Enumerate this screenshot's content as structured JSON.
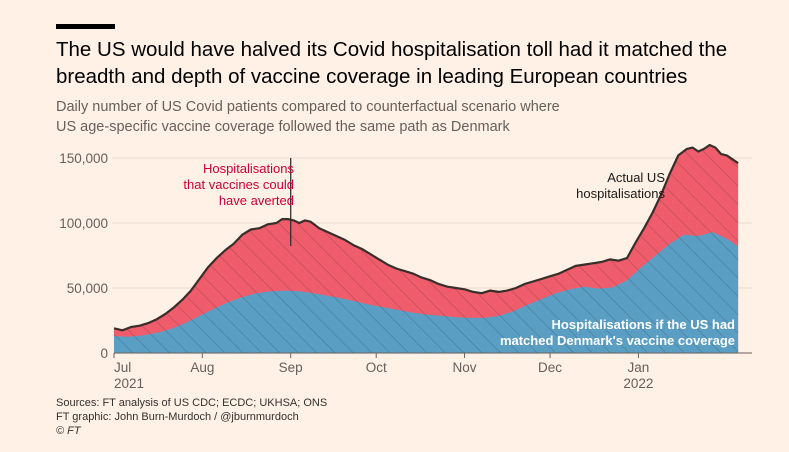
{
  "header": {
    "title": "The US would have halved its Covid hospitalisation toll had it matched the breadth and depth of vaccine coverage in leading European countries",
    "subtitle_line1": "Daily number of US Covid patients compared to counterfactual scenario where",
    "subtitle_line2": "US age-specific vaccine coverage followed the same path as Denmark"
  },
  "footer": {
    "sources": "Sources: FT analysis of US CDC; ECDC; UKHSA; ONS",
    "graphic": "FT graphic: John Burn-Murdoch / @jburnmurdoch",
    "copyright": "© FT"
  },
  "colors": {
    "background": "#fff1e5",
    "actual_area": "#ef5d6c",
    "counterfactual_area": "#5a9ec4",
    "actual_line": "#3a2e2a",
    "annotation_red": "#cc0033",
    "axis_text": "#66605c"
  },
  "chart_data": {
    "type": "area",
    "x_axis_ticks": [
      {
        "label": "Jul",
        "sublabel": "2021",
        "day": 0
      },
      {
        "label": "Aug",
        "sublabel": "",
        "day": 31
      },
      {
        "label": "Sep",
        "sublabel": "",
        "day": 62
      },
      {
        "label": "Oct",
        "sublabel": "",
        "day": 92
      },
      {
        "label": "Nov",
        "sublabel": "",
        "day": 123
      },
      {
        "label": "Dec",
        "sublabel": "",
        "day": 153
      },
      {
        "label": "Jan",
        "sublabel": "2022",
        "day": 184
      }
    ],
    "y_axis_ticks": [
      {
        "label": "0",
        "value": 0
      },
      {
        "label": "50,000",
        "value": 50000
      },
      {
        "label": "100,000",
        "value": 100000
      },
      {
        "label": "150,000",
        "value": 150000
      }
    ],
    "ylim": [
      0,
      160000
    ],
    "grid": true,
    "series": [
      {
        "name": "Actual US hospitalisations",
        "label_line1": "Actual US",
        "label_line2": "hospitalisations",
        "points": [
          [
            0,
            19000
          ],
          [
            3,
            17500
          ],
          [
            6,
            20000
          ],
          [
            9,
            21000
          ],
          [
            12,
            23000
          ],
          [
            15,
            26000
          ],
          [
            18,
            30000
          ],
          [
            21,
            35000
          ],
          [
            24,
            41000
          ],
          [
            27,
            48000
          ],
          [
            30,
            57000
          ],
          [
            33,
            66000
          ],
          [
            36,
            73000
          ],
          [
            39,
            79000
          ],
          [
            42,
            84000
          ],
          [
            45,
            91000
          ],
          [
            48,
            95000
          ],
          [
            51,
            96000
          ],
          [
            54,
            99000
          ],
          [
            57,
            100000
          ],
          [
            59,
            103000
          ],
          [
            61,
            103000
          ],
          [
            63,
            102000
          ],
          [
            65,
            100000
          ],
          [
            67,
            102000
          ],
          [
            69,
            101000
          ],
          [
            72,
            96000
          ],
          [
            75,
            93000
          ],
          [
            78,
            90000
          ],
          [
            81,
            87000
          ],
          [
            84,
            83000
          ],
          [
            87,
            80000
          ],
          [
            90,
            76000
          ],
          [
            93,
            72000
          ],
          [
            96,
            68000
          ],
          [
            99,
            65000
          ],
          [
            102,
            63000
          ],
          [
            105,
            61000
          ],
          [
            108,
            58000
          ],
          [
            111,
            56000
          ],
          [
            114,
            53000
          ],
          [
            117,
            51000
          ],
          [
            120,
            50000
          ],
          [
            123,
            49000
          ],
          [
            126,
            47000
          ],
          [
            129,
            46000
          ],
          [
            132,
            48000
          ],
          [
            135,
            47000
          ],
          [
            138,
            48000
          ],
          [
            141,
            50000
          ],
          [
            144,
            53000
          ],
          [
            147,
            55000
          ],
          [
            150,
            57000
          ],
          [
            153,
            59000
          ],
          [
            156,
            61000
          ],
          [
            159,
            64000
          ],
          [
            162,
            67000
          ],
          [
            165,
            68000
          ],
          [
            168,
            69000
          ],
          [
            171,
            70000
          ],
          [
            174,
            72000
          ],
          [
            177,
            71000
          ],
          [
            180,
            73000
          ],
          [
            183,
            85000
          ],
          [
            186,
            96000
          ],
          [
            189,
            108000
          ],
          [
            192,
            122000
          ],
          [
            195,
            138000
          ],
          [
            198,
            152000
          ],
          [
            201,
            157000
          ],
          [
            203,
            158000
          ],
          [
            205,
            155000
          ],
          [
            207,
            157000
          ],
          [
            209,
            160000
          ],
          [
            211,
            158000
          ],
          [
            213,
            153000
          ],
          [
            215,
            152000
          ],
          [
            217,
            149000
          ],
          [
            219,
            146000
          ]
        ]
      },
      {
        "name": "Hospitalisations if the US had matched Denmark's vaccine coverage",
        "label_line1": "Hospitalisations if the US had",
        "label_line2": "matched Denmark's vaccine coverage",
        "points": [
          [
            0,
            13000
          ],
          [
            5,
            12500
          ],
          [
            10,
            13500
          ],
          [
            15,
            15500
          ],
          [
            20,
            18500
          ],
          [
            25,
            23000
          ],
          [
            30,
            28500
          ],
          [
            35,
            34000
          ],
          [
            40,
            39000
          ],
          [
            45,
            43000
          ],
          [
            50,
            46000
          ],
          [
            55,
            47500
          ],
          [
            60,
            48000
          ],
          [
            65,
            47500
          ],
          [
            70,
            46000
          ],
          [
            75,
            44000
          ],
          [
            80,
            42000
          ],
          [
            85,
            39500
          ],
          [
            90,
            37000
          ],
          [
            95,
            35000
          ],
          [
            100,
            33000
          ],
          [
            105,
            31000
          ],
          [
            110,
            29500
          ],
          [
            115,
            28500
          ],
          [
            120,
            27500
          ],
          [
            125,
            27000
          ],
          [
            130,
            27000
          ],
          [
            135,
            28500
          ],
          [
            140,
            32000
          ],
          [
            145,
            37000
          ],
          [
            150,
            41500
          ],
          [
            155,
            46000
          ],
          [
            160,
            49000
          ],
          [
            165,
            51000
          ],
          [
            170,
            49500
          ],
          [
            175,
            50500
          ],
          [
            180,
            56000
          ],
          [
            185,
            66000
          ],
          [
            190,
            75000
          ],
          [
            195,
            84000
          ],
          [
            200,
            91000
          ],
          [
            205,
            90000
          ],
          [
            210,
            93000
          ],
          [
            215,
            88000
          ],
          [
            219,
            82000
          ]
        ]
      }
    ],
    "annotation": {
      "line1": "Hospitalisations",
      "line2": "that vaccines could",
      "line3": "have averted",
      "day": 62
    }
  }
}
